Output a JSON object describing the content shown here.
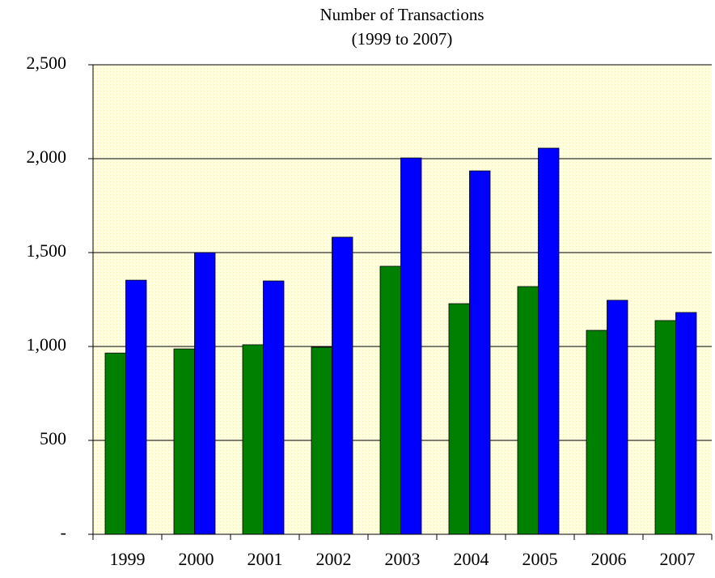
{
  "chart_data": {
    "type": "bar",
    "title": "Number of Transactions",
    "subtitle": "(1999 to 2007)",
    "categories": [
      "1999",
      "2000",
      "2001",
      "2002",
      "2003",
      "2004",
      "2005",
      "2006",
      "2007"
    ],
    "series": [
      {
        "color": "#008000",
        "values": [
          965,
          987,
          1009,
          996,
          1427,
          1228,
          1319,
          1086,
          1138
        ]
      },
      {
        "color": "#0000ff",
        "values": [
          1353,
          1500,
          1349,
          1582,
          2004,
          1935,
          2056,
          1246,
          1181
        ]
      }
    ],
    "ylim": [
      0,
      2500
    ],
    "yticks": [
      {
        "value": 0,
        "label": "-"
      },
      500,
      {
        "value": 1000,
        "label": "1,000"
      },
      {
        "value": 1500,
        "label": "1,500"
      },
      {
        "value": 2000,
        "label": "2,000"
      },
      {
        "value": 2500,
        "label": "2,500"
      }
    ],
    "grid": true
  }
}
